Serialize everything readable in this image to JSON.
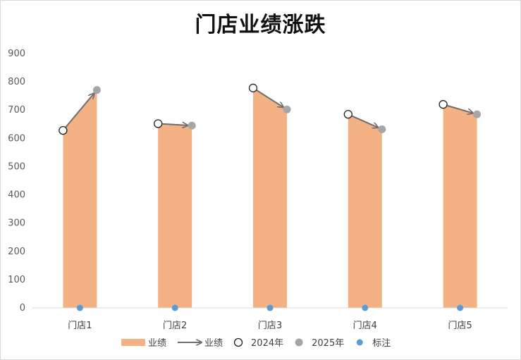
{
  "chart_data": {
    "type": "bar",
    "title": "门店业绩涨跌",
    "categories": [
      "门店1",
      "门店2",
      "门店3",
      "门店4",
      "门店5"
    ],
    "series": [
      {
        "name": "2024年",
        "values": [
          628,
          652,
          778,
          685,
          720
        ]
      },
      {
        "name": "2025年",
        "values": [
          771,
          645,
          702,
          632,
          685
        ]
      },
      {
        "name": "标注",
        "values": [
          0,
          0,
          0,
          0,
          0
        ]
      }
    ],
    "yticks": [
      "0",
      "100",
      "200",
      "300",
      "400",
      "500",
      "600",
      "700",
      "800",
      "900"
    ],
    "ylim": [
      0,
      900
    ],
    "legend": [
      {
        "label": "业绩",
        "kind": "area"
      },
      {
        "label": "业绩",
        "kind": "arrow"
      },
      {
        "label": "2024年",
        "kind": "open-circle"
      },
      {
        "label": "2025年",
        "kind": "gray-dot"
      },
      {
        "label": "标注",
        "kind": "blue-dot"
      }
    ],
    "legend_position": "bottom",
    "colors": {
      "area": "#f4b183",
      "arrow": "#6e6e6e",
      "dot2025": "#a6a6a6",
      "marker": "#5b9bd5",
      "axis": "#d9d9d9"
    }
  }
}
